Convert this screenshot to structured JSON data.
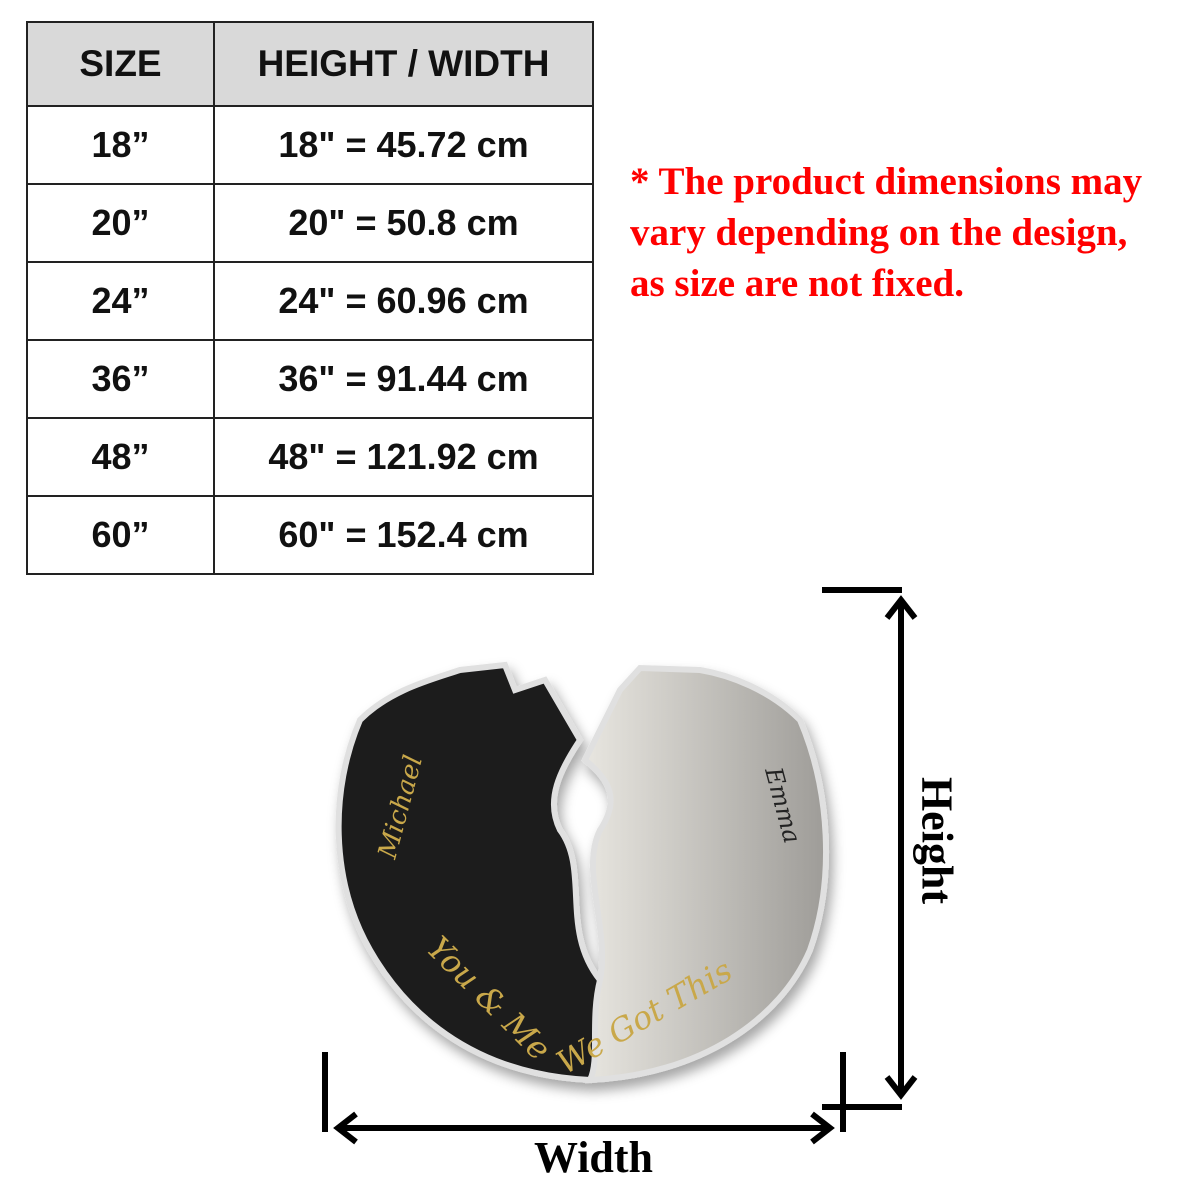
{
  "size_table": {
    "headers": [
      "SIZE",
      "HEIGHT / WIDTH"
    ],
    "rows": [
      {
        "size": "18”",
        "dimension": "18\" = 45.72 cm"
      },
      {
        "size": "20”",
        "dimension": "20\" = 50.8 cm"
      },
      {
        "size": "24”",
        "dimension": "24\" = 60.96 cm"
      },
      {
        "size": "36”",
        "dimension": "36\" = 91.44 cm"
      },
      {
        "size": "48”",
        "dimension": "48\" = 121.92 cm"
      },
      {
        "size": "60”",
        "dimension": "60\" = 152.4 cm"
      }
    ]
  },
  "note": {
    "lines": [
      "* The product dimensions may",
      "vary depending on the design,",
      "as size are not fixed."
    ],
    "color": "#ff0000"
  },
  "product": {
    "name_left": "Michael",
    "name_right": "Emma",
    "phrase_left": "You & Me",
    "phrase_right": "We Got This",
    "accent_color": "#c9a84a"
  },
  "dimensions": {
    "width_label": "Width",
    "height_label": "Height"
  }
}
